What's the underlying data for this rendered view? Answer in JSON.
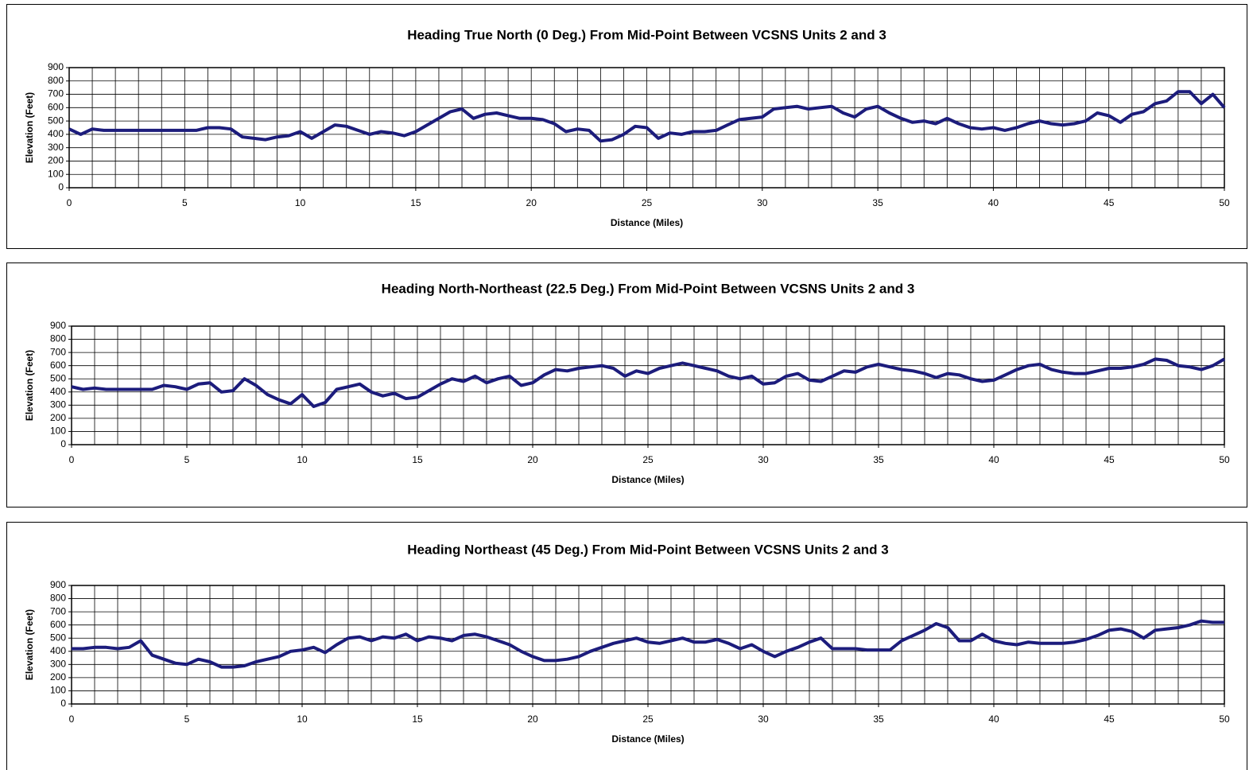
{
  "chart_data": [
    {
      "type": "line",
      "title": "Heading True North (0 Deg.) From Mid-Point Between VCSNS Units 2 and 3",
      "x_label": "Distance (Miles)",
      "y_label": "Elevation (Feet)",
      "xlim": [
        0,
        50
      ],
      "ylim": [
        0,
        900
      ],
      "xticks": [
        0,
        5,
        10,
        15,
        20,
        25,
        30,
        35,
        40,
        45,
        50
      ],
      "xgrid": [
        0,
        1,
        2,
        3,
        4,
        5,
        6,
        7,
        8,
        9,
        10,
        11,
        12,
        13,
        14,
        15,
        16,
        17,
        18,
        19,
        20,
        21,
        22,
        23,
        24,
        25,
        26,
        27,
        28,
        29,
        30,
        31,
        32,
        33,
        34,
        35,
        36,
        37,
        38,
        39,
        40,
        41,
        42,
        43,
        44,
        45,
        46,
        47,
        48,
        49,
        50
      ],
      "yticks": [
        0,
        100,
        200,
        300,
        400,
        500,
        600,
        700,
        800,
        900
      ],
      "grid": true,
      "series": [
        {
          "color": "#1c1c7c",
          "x": [
            0,
            0.5,
            1,
            1.5,
            2,
            2.5,
            3,
            3.5,
            4,
            4.5,
            5,
            5.5,
            6,
            6.5,
            7,
            7.5,
            8,
            8.5,
            9,
            9.5,
            10,
            10.5,
            11,
            11.5,
            12,
            12.5,
            13,
            13.5,
            14,
            14.5,
            15,
            15.5,
            16,
            16.5,
            17,
            17.5,
            18,
            18.5,
            19,
            19.5,
            20,
            20.5,
            21,
            21.5,
            22,
            22.5,
            23,
            23.5,
            24,
            24.5,
            25,
            25.5,
            26,
            26.5,
            27,
            27.5,
            28,
            28.5,
            29,
            29.5,
            30,
            30.5,
            31,
            31.5,
            32,
            32.5,
            33,
            33.5,
            34,
            34.5,
            35,
            35.5,
            36,
            36.5,
            37,
            37.5,
            38,
            38.5,
            39,
            39.5,
            40,
            40.5,
            41,
            41.5,
            42,
            42.5,
            43,
            43.5,
            44,
            44.5,
            45,
            45.5,
            46,
            46.5,
            47,
            47.5,
            48,
            48.5,
            49,
            49.5,
            50
          ],
          "values": [
            440,
            400,
            440,
            430,
            430,
            430,
            430,
            430,
            430,
            430,
            430,
            430,
            450,
            450,
            440,
            380,
            370,
            360,
            380,
            390,
            420,
            370,
            420,
            470,
            460,
            430,
            400,
            420,
            410,
            390,
            420,
            470,
            520,
            570,
            590,
            520,
            550,
            560,
            540,
            520,
            520,
            510,
            480,
            420,
            440,
            430,
            350,
            360,
            400,
            460,
            450,
            370,
            410,
            400,
            420,
            420,
            430,
            470,
            510,
            520,
            530,
            590,
            600,
            610,
            590,
            600,
            610,
            560,
            530,
            590,
            610,
            560,
            520,
            490,
            500,
            480,
            520,
            480,
            450,
            440,
            450,
            430,
            450,
            480,
            500,
            480,
            470,
            480,
            500,
            560,
            540,
            490,
            550,
            570,
            630,
            650,
            720,
            720,
            630,
            700,
            600
          ]
        }
      ]
    },
    {
      "type": "line",
      "title": "Heading North-Northeast (22.5 Deg.) From Mid-Point Between VCSNS Units 2 and 3",
      "x_label": "Distance (Miles)",
      "y_label": "Elevation (Feet)",
      "xlim": [
        0,
        50
      ],
      "ylim": [
        0,
        900
      ],
      "xticks": [
        0,
        5,
        10,
        15,
        20,
        25,
        30,
        35,
        40,
        45,
        50
      ],
      "xgrid": [
        0,
        1,
        2,
        3,
        4,
        5,
        6,
        7,
        8,
        9,
        10,
        11,
        12,
        13,
        14,
        15,
        16,
        17,
        18,
        19,
        20,
        21,
        22,
        23,
        24,
        25,
        26,
        27,
        28,
        29,
        30,
        31,
        32,
        33,
        34,
        35,
        36,
        37,
        38,
        39,
        40,
        41,
        42,
        43,
        44,
        45,
        46,
        47,
        48,
        49,
        50
      ],
      "yticks": [
        0,
        100,
        200,
        300,
        400,
        500,
        600,
        700,
        800,
        900
      ],
      "grid": true,
      "series": [
        {
          "color": "#1c1c7c",
          "x": [
            0,
            0.5,
            1,
            1.5,
            2,
            2.5,
            3,
            3.5,
            4,
            4.5,
            5,
            5.5,
            6,
            6.5,
            7,
            7.5,
            8,
            8.5,
            9,
            9.5,
            10,
            10.5,
            11,
            11.5,
            12,
            12.5,
            13,
            13.5,
            14,
            14.5,
            15,
            15.5,
            16,
            16.5,
            17,
            17.5,
            18,
            18.5,
            19,
            19.5,
            20,
            20.5,
            21,
            21.5,
            22,
            22.5,
            23,
            23.5,
            24,
            24.5,
            25,
            25.5,
            26,
            26.5,
            27,
            27.5,
            28,
            28.5,
            29,
            29.5,
            30,
            30.5,
            31,
            31.5,
            32,
            32.5,
            33,
            33.5,
            34,
            34.5,
            35,
            35.5,
            36,
            36.5,
            37,
            37.5,
            38,
            38.5,
            39,
            39.5,
            40,
            40.5,
            41,
            41.5,
            42,
            42.5,
            43,
            43.5,
            44,
            44.5,
            45,
            45.5,
            46,
            46.5,
            47,
            47.5,
            48,
            48.5,
            49,
            49.5,
            50
          ],
          "values": [
            440,
            420,
            430,
            420,
            420,
            420,
            420,
            420,
            450,
            440,
            420,
            460,
            470,
            400,
            410,
            500,
            450,
            380,
            340,
            310,
            380,
            290,
            320,
            420,
            440,
            460,
            400,
            370,
            390,
            350,
            360,
            410,
            460,
            500,
            480,
            520,
            470,
            500,
            520,
            450,
            470,
            530,
            570,
            560,
            580,
            590,
            600,
            580,
            520,
            560,
            540,
            580,
            600,
            620,
            600,
            580,
            560,
            520,
            500,
            520,
            460,
            470,
            520,
            540,
            490,
            480,
            520,
            560,
            550,
            590,
            610,
            590,
            570,
            560,
            540,
            510,
            540,
            530,
            500,
            480,
            490,
            530,
            570,
            600,
            610,
            570,
            550,
            540,
            540,
            560,
            580,
            580,
            590,
            610,
            650,
            640,
            600,
            590,
            570,
            600,
            650
          ]
        }
      ]
    },
    {
      "type": "line",
      "title": "Heading Northeast (45 Deg.) From Mid-Point Between VCSNS Units 2 and 3",
      "x_label": "Distance (Miles)",
      "y_label": "Elevation (Feet)",
      "xlim": [
        0,
        50
      ],
      "ylim": [
        0,
        900
      ],
      "xticks": [
        0,
        5,
        10,
        15,
        20,
        25,
        30,
        35,
        40,
        45,
        50
      ],
      "xgrid": [
        0,
        1,
        2,
        3,
        4,
        5,
        6,
        7,
        8,
        9,
        10,
        11,
        12,
        13,
        14,
        15,
        16,
        17,
        18,
        19,
        20,
        21,
        22,
        23,
        24,
        25,
        26,
        27,
        28,
        29,
        30,
        31,
        32,
        33,
        34,
        35,
        36,
        37,
        38,
        39,
        40,
        41,
        42,
        43,
        44,
        45,
        46,
        47,
        48,
        49,
        50
      ],
      "yticks": [
        0,
        100,
        200,
        300,
        400,
        500,
        600,
        700,
        800,
        900
      ],
      "grid": true,
      "series": [
        {
          "color": "#1c1c7c",
          "x": [
            0,
            0.5,
            1,
            1.5,
            2,
            2.5,
            3,
            3.5,
            4,
            4.5,
            5,
            5.5,
            6,
            6.5,
            7,
            7.5,
            8,
            8.5,
            9,
            9.5,
            10,
            10.5,
            11,
            11.5,
            12,
            12.5,
            13,
            13.5,
            14,
            14.5,
            15,
            15.5,
            16,
            16.5,
            17,
            17.5,
            18,
            18.5,
            19,
            19.5,
            20,
            20.5,
            21,
            21.5,
            22,
            22.5,
            23,
            23.5,
            24,
            24.5,
            25,
            25.5,
            26,
            26.5,
            27,
            27.5,
            28,
            28.5,
            29,
            29.5,
            30,
            30.5,
            31,
            31.5,
            32,
            32.5,
            33,
            33.5,
            34,
            34.5,
            35,
            35.5,
            36,
            36.5,
            37,
            37.5,
            38,
            38.5,
            39,
            39.5,
            40,
            40.5,
            41,
            41.5,
            42,
            42.5,
            43,
            43.5,
            44,
            44.5,
            45,
            45.5,
            46,
            46.5,
            47,
            47.5,
            48,
            48.5,
            49,
            49.5,
            50
          ],
          "values": [
            420,
            420,
            430,
            430,
            420,
            430,
            480,
            370,
            340,
            310,
            300,
            340,
            320,
            280,
            280,
            290,
            320,
            340,
            360,
            400,
            410,
            430,
            390,
            450,
            500,
            510,
            480,
            510,
            500,
            530,
            480,
            510,
            500,
            480,
            520,
            530,
            510,
            480,
            450,
            400,
            360,
            330,
            330,
            340,
            360,
            400,
            430,
            460,
            480,
            500,
            470,
            460,
            480,
            500,
            470,
            470,
            490,
            460,
            420,
            450,
            400,
            360,
            400,
            430,
            470,
            500,
            420,
            420,
            420,
            410,
            410,
            410,
            480,
            520,
            560,
            610,
            580,
            480,
            480,
            530,
            480,
            460,
            450,
            470,
            460,
            460,
            460,
            470,
            490,
            520,
            560,
            570,
            550,
            500,
            560,
            570,
            580,
            600,
            630,
            620,
            620
          ]
        }
      ]
    }
  ]
}
